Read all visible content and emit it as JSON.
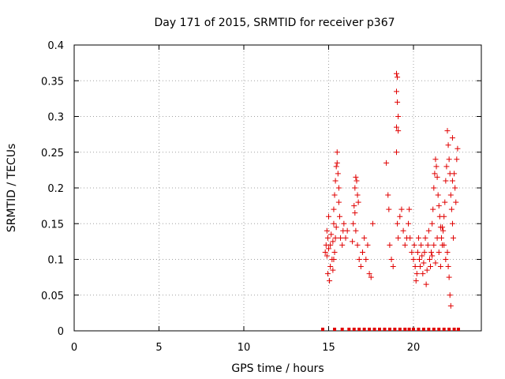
{
  "chart_data": {
    "type": "scatter",
    "title": "Day 171 of 2015, SRMTID for receiver p367",
    "xlabel": "GPS time / hours",
    "ylabel": "SRMTID / TECUs",
    "xlim": [
      0,
      24
    ],
    "ylim": [
      0,
      0.4
    ],
    "xticks": [
      0,
      5,
      10,
      15,
      20
    ],
    "yticks": [
      0,
      0.05,
      0.1,
      0.15,
      0.2,
      0.25,
      0.3,
      0.35,
      0.4
    ],
    "xtick_labels": [
      "0",
      "5",
      "10",
      "15",
      "20"
    ],
    "ytick_labels": [
      "0",
      "0.05",
      "0.1",
      "0.15",
      "0.2",
      "0.25",
      "0.3",
      "0.35",
      "0.4"
    ],
    "grid": true,
    "marker": "+",
    "color": "#e00000",
    "series": [
      {
        "name": "SRMTID",
        "points": [
          [
            14.8,
            0.11
          ],
          [
            14.85,
            0.12
          ],
          [
            14.9,
            0.105
          ],
          [
            14.95,
            0.13
          ],
          [
            15.0,
            0.115
          ],
          [
            14.9,
            0.14
          ],
          [
            15.0,
            0.16
          ],
          [
            14.95,
            0.08
          ],
          [
            15.05,
            0.07
          ],
          [
            15.1,
            0.09
          ],
          [
            15.1,
            0.12
          ],
          [
            15.15,
            0.135
          ],
          [
            15.2,
            0.1
          ],
          [
            15.25,
            0.125
          ],
          [
            15.3,
            0.15
          ],
          [
            15.3,
            0.17
          ],
          [
            15.35,
            0.19
          ],
          [
            15.4,
            0.21
          ],
          [
            15.45,
            0.23
          ],
          [
            15.5,
            0.25
          ],
          [
            15.5,
            0.235
          ],
          [
            15.55,
            0.22
          ],
          [
            15.6,
            0.2
          ],
          [
            15.6,
            0.18
          ],
          [
            15.65,
            0.16
          ],
          [
            15.45,
            0.145
          ],
          [
            15.4,
            0.13
          ],
          [
            15.35,
            0.11
          ],
          [
            15.3,
            0.1
          ],
          [
            15.25,
            0.085
          ],
          [
            15.7,
            0.13
          ],
          [
            15.8,
            0.12
          ],
          [
            15.85,
            0.14
          ],
          [
            15.9,
            0.15
          ],
          [
            16.0,
            0.13
          ],
          [
            16.1,
            0.14
          ],
          [
            16.4,
            0.125
          ],
          [
            16.45,
            0.15
          ],
          [
            16.5,
            0.175
          ],
          [
            16.55,
            0.2
          ],
          [
            16.6,
            0.215
          ],
          [
            16.65,
            0.21
          ],
          [
            16.7,
            0.19
          ],
          [
            16.75,
            0.18
          ],
          [
            16.55,
            0.165
          ],
          [
            16.6,
            0.14
          ],
          [
            16.7,
            0.12
          ],
          [
            16.8,
            0.1
          ],
          [
            16.9,
            0.09
          ],
          [
            17.0,
            0.11
          ],
          [
            17.1,
            0.13
          ],
          [
            17.2,
            0.1
          ],
          [
            17.3,
            0.12
          ],
          [
            17.4,
            0.08
          ],
          [
            17.5,
            0.075
          ],
          [
            17.6,
            0.15
          ],
          [
            18.4,
            0.235
          ],
          [
            18.5,
            0.19
          ],
          [
            18.55,
            0.17
          ],
          [
            18.6,
            0.12
          ],
          [
            18.7,
            0.1
          ],
          [
            18.8,
            0.09
          ],
          [
            19.0,
            0.36
          ],
          [
            19.05,
            0.355
          ],
          [
            19.0,
            0.335
          ],
          [
            19.05,
            0.32
          ],
          [
            19.1,
            0.3
          ],
          [
            19.0,
            0.285
          ],
          [
            19.1,
            0.28
          ],
          [
            19.0,
            0.25
          ],
          [
            19.05,
            0.15
          ],
          [
            19.1,
            0.13
          ],
          [
            19.2,
            0.16
          ],
          [
            19.3,
            0.17
          ],
          [
            19.4,
            0.14
          ],
          [
            19.5,
            0.12
          ],
          [
            19.6,
            0.13
          ],
          [
            19.7,
            0.15
          ],
          [
            19.75,
            0.17
          ],
          [
            19.8,
            0.13
          ],
          [
            19.9,
            0.11
          ],
          [
            20.0,
            0.1
          ],
          [
            20.05,
            0.12
          ],
          [
            20.1,
            0.09
          ],
          [
            20.15,
            0.07
          ],
          [
            20.2,
            0.08
          ],
          [
            20.25,
            0.11
          ],
          [
            20.3,
            0.13
          ],
          [
            20.35,
            0.1
          ],
          [
            20.4,
            0.09
          ],
          [
            20.45,
            0.12
          ],
          [
            20.5,
            0.105
          ],
          [
            20.55,
            0.08
          ],
          [
            20.6,
            0.095
          ],
          [
            20.65,
            0.11
          ],
          [
            20.7,
            0.13
          ],
          [
            20.75,
            0.065
          ],
          [
            20.8,
            0.085
          ],
          [
            20.85,
            0.12
          ],
          [
            20.9,
            0.14
          ],
          [
            20.95,
            0.1
          ],
          [
            21.0,
            0.09
          ],
          [
            21.05,
            0.11
          ],
          [
            21.1,
            0.15
          ],
          [
            21.15,
            0.17
          ],
          [
            21.2,
            0.2
          ],
          [
            21.25,
            0.22
          ],
          [
            21.3,
            0.24
          ],
          [
            21.35,
            0.23
          ],
          [
            21.4,
            0.215
          ],
          [
            21.45,
            0.19
          ],
          [
            21.5,
            0.175
          ],
          [
            21.55,
            0.16
          ],
          [
            21.6,
            0.145
          ],
          [
            21.65,
            0.13
          ],
          [
            21.7,
            0.12
          ],
          [
            21.75,
            0.14
          ],
          [
            21.8,
            0.16
          ],
          [
            21.85,
            0.18
          ],
          [
            21.9,
            0.21
          ],
          [
            21.95,
            0.23
          ],
          [
            22.0,
            0.28
          ],
          [
            22.05,
            0.26
          ],
          [
            22.1,
            0.24
          ],
          [
            22.15,
            0.22
          ],
          [
            22.2,
            0.19
          ],
          [
            22.25,
            0.17
          ],
          [
            22.3,
            0.15
          ],
          [
            22.35,
            0.13
          ],
          [
            22.0,
            0.11
          ],
          [
            22.05,
            0.09
          ],
          [
            22.1,
            0.075
          ],
          [
            22.15,
            0.05
          ],
          [
            22.2,
            0.035
          ],
          [
            22.3,
            0.21
          ],
          [
            22.4,
            0.22
          ],
          [
            22.45,
            0.2
          ],
          [
            22.5,
            0.18
          ],
          [
            22.55,
            0.24
          ],
          [
            22.6,
            0.255
          ],
          [
            22.3,
            0.27
          ],
          [
            21.9,
            0.1
          ],
          [
            21.8,
            0.12
          ],
          [
            21.7,
            0.145
          ],
          [
            21.6,
            0.09
          ],
          [
            21.5,
            0.11
          ],
          [
            21.4,
            0.13
          ],
          [
            21.3,
            0.095
          ],
          [
            21.2,
            0.12
          ],
          [
            21.1,
            0.105
          ]
        ],
        "zero_points": [
          14.65,
          15.35,
          15.8,
          16.2,
          16.5,
          16.8,
          17.1,
          17.4,
          17.7,
          18.0,
          18.3,
          18.6,
          18.9,
          19.2,
          19.5,
          19.75,
          20.0,
          20.3,
          20.6,
          20.9,
          21.2,
          21.5,
          21.8,
          22.1,
          22.4,
          22.65
        ]
      }
    ]
  }
}
